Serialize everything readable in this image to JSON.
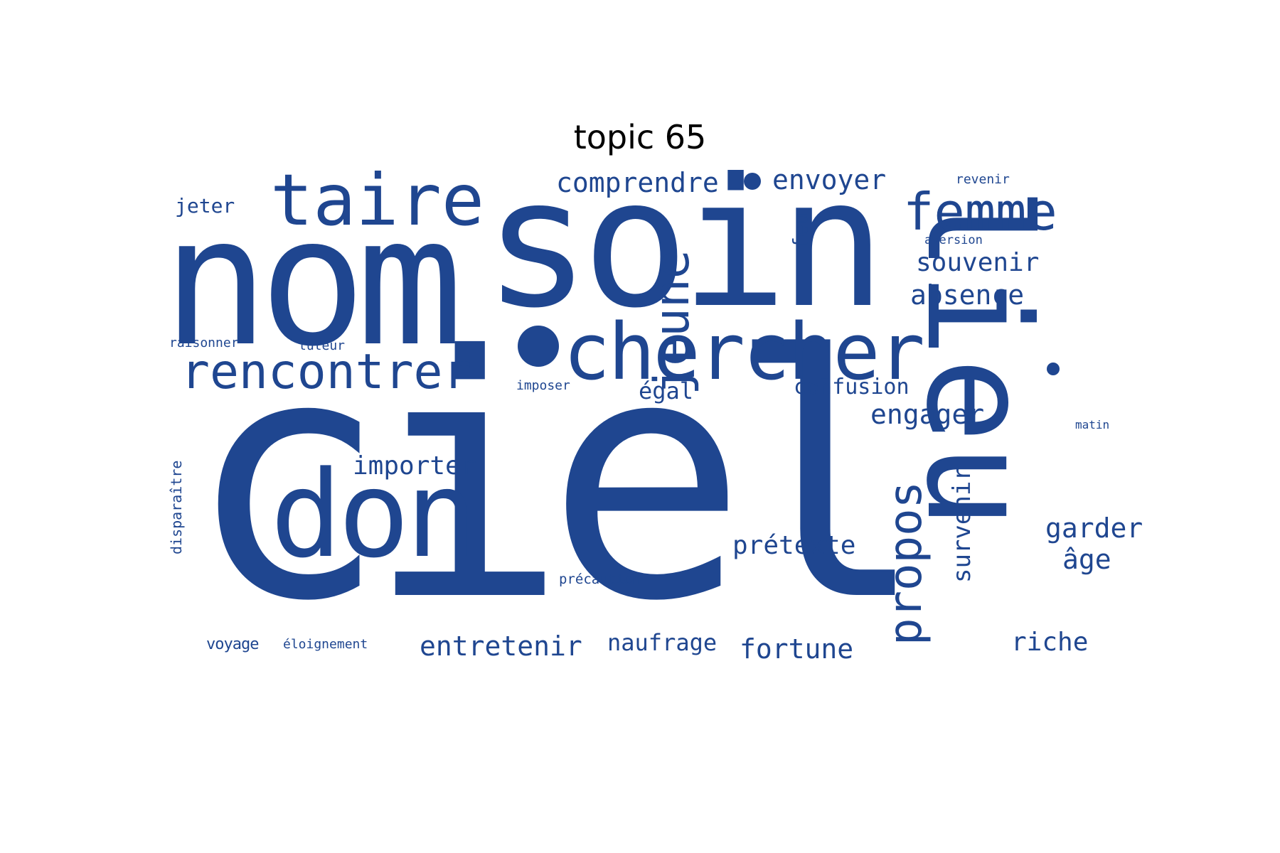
{
  "title": "topic 65",
  "color": "#1f4690",
  "words": [
    {
      "text": "ciel",
      "weight": 100
    },
    {
      "text": "nom",
      "weight": 60
    },
    {
      "text": "soin",
      "weight": 58
    },
    {
      "text": "lieu",
      "weight": 46
    },
    {
      "text": "don",
      "weight": 40
    },
    {
      "text": "chercher",
      "weight": 27
    },
    {
      "text": "taire",
      "weight": 24
    },
    {
      "text": "femme",
      "weight": 19
    },
    {
      "text": "rencontrer",
      "weight": 19
    },
    {
      "text": "jeune",
      "weight": 18
    },
    {
      "text": "propos",
      "weight": 17
    },
    {
      "text": "comprendre",
      "weight": 10
    },
    {
      "text": "envoyer",
      "weight": 10
    },
    {
      "text": "souvenir",
      "weight": 10
    },
    {
      "text": "absence",
      "weight": 10
    },
    {
      "text": "confusion",
      "weight": 9
    },
    {
      "text": "engager",
      "weight": 10
    },
    {
      "text": "importer",
      "weight": 10
    },
    {
      "text": "prétexte",
      "weight": 10
    },
    {
      "text": "survenir",
      "weight": 9
    },
    {
      "text": "garder",
      "weight": 10
    },
    {
      "text": "âge",
      "weight": 10
    },
    {
      "text": "entretenir",
      "weight": 10
    },
    {
      "text": "naufrage",
      "weight": 9
    },
    {
      "text": "fortune",
      "weight": 10
    },
    {
      "text": "riche",
      "weight": 10
    },
    {
      "text": "jeter",
      "weight": 8
    },
    {
      "text": "égal",
      "weight": 8
    },
    {
      "text": "feu",
      "weight": 7
    },
    {
      "text": "revenir",
      "weight": 5
    },
    {
      "text": "aversion",
      "weight": 5
    },
    {
      "text": "raisonner",
      "weight": 5
    },
    {
      "text": "tuteur",
      "weight": 5
    },
    {
      "text": "imposer",
      "weight": 5
    },
    {
      "text": "matin",
      "weight": 5
    },
    {
      "text": "disparaître",
      "weight": 5
    },
    {
      "text": "précaution",
      "weight": 5
    },
    {
      "text": "voyage",
      "weight": 6
    },
    {
      "text": "éloignement",
      "weight": 5
    }
  ]
}
